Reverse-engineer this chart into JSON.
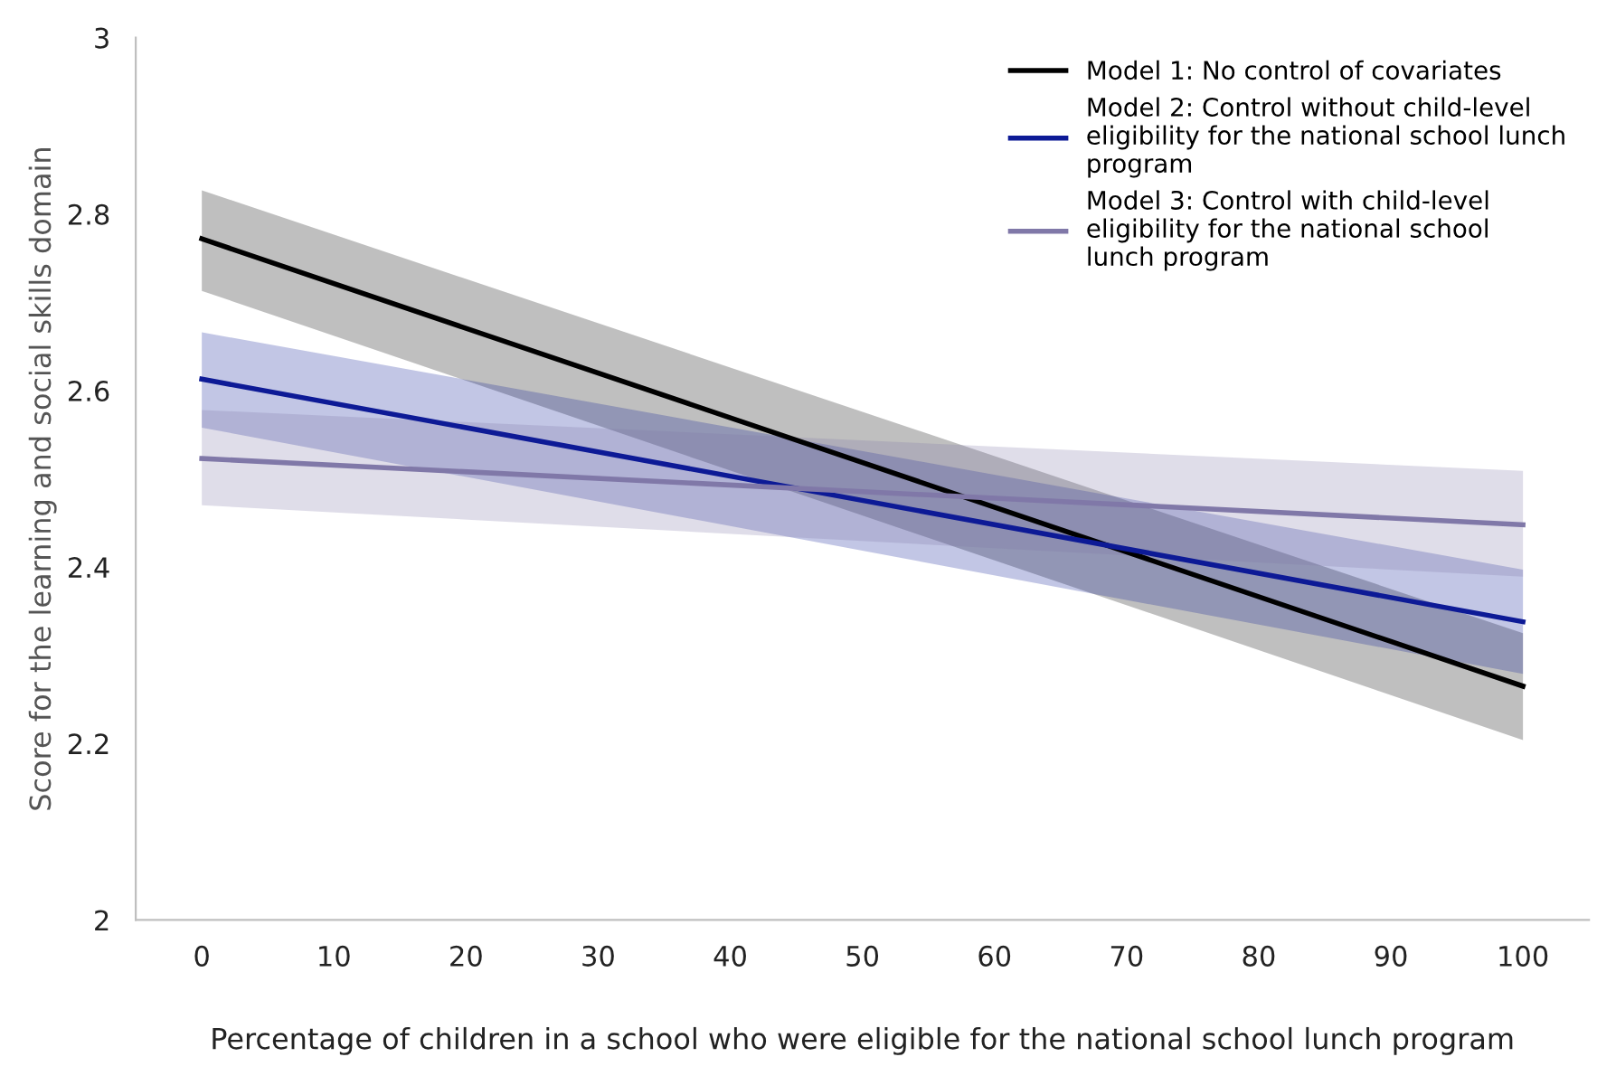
{
  "chart_data": {
    "type": "line",
    "xlabel": "Percentage of children in a school who were eligible for the national school lunch program",
    "ylabel": "Score for the learning and social skills domain",
    "x": [
      0,
      100
    ],
    "xlim": [
      -5,
      105
    ],
    "xticks": [
      0,
      10,
      20,
      30,
      40,
      50,
      60,
      70,
      80,
      90,
      100
    ],
    "ylim": [
      2,
      3
    ],
    "yticks": [
      2,
      2.2,
      2.4,
      2.6,
      2.8,
      3
    ],
    "grid": false,
    "legend": "top right",
    "series": [
      {
        "name": "Model 1: No control of covariates",
        "color": "#000000",
        "values": [
          2.772,
          2.265
        ],
        "lower": [
          2.713,
          2.204
        ],
        "upper": [
          2.827,
          2.325
        ]
      },
      {
        "name": "Model 2: Control without child-level\neligibility for the national school lunch\nprogram",
        "color": "#0d1a96",
        "values": [
          2.613,
          2.338
        ],
        "lower": [
          2.558,
          2.279
        ],
        "upper": [
          2.666,
          2.397
        ]
      },
      {
        "name": "Model 3: Control with child-level\neligibility for the national school\nlunch program",
        "color": "#8078a8",
        "values": [
          2.523,
          2.448
        ],
        "lower": [
          2.47,
          2.389
        ],
        "upper": [
          2.578,
          2.509
        ]
      }
    ]
  }
}
